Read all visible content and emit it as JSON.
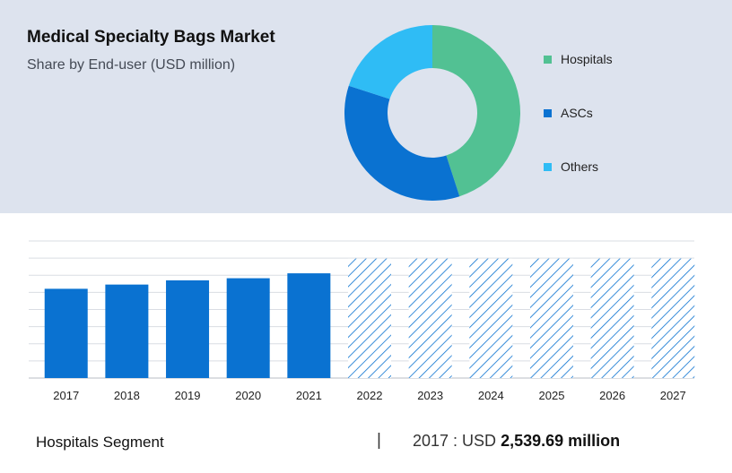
{
  "header": {
    "title": "Medical Specialty Bags Market",
    "subtitle": "Share by End-user (USD million)"
  },
  "footer": {
    "segment": "Hospitals Segment",
    "separator": "|",
    "year_prefix": "2017 : USD ",
    "value_text": "2,539.69 million"
  },
  "chart_data": [
    {
      "type": "pie",
      "variant": "donut",
      "categories": [
        "Hospitals",
        "ASCs",
        "Others"
      ],
      "values": [
        45,
        35,
        20
      ],
      "colors": [
        "#52c193",
        "#0a72d1",
        "#2fbcf5"
      ],
      "legend_position": "right"
    },
    {
      "type": "bar",
      "categories": [
        "2017",
        "2018",
        "2019",
        "2020",
        "2021",
        "2022",
        "2023",
        "2024",
        "2025",
        "2026",
        "2027"
      ],
      "values": [
        2539.69,
        2660,
        2780,
        2840,
        2980,
        3400,
        3400,
        3400,
        3400,
        3400,
        3400
      ],
      "forecast_from_index": 5,
      "ylim": [
        0,
        3900
      ],
      "grid": true,
      "colors": {
        "actual": "#0a72d1",
        "forecast": "#0a72d1"
      }
    }
  ]
}
